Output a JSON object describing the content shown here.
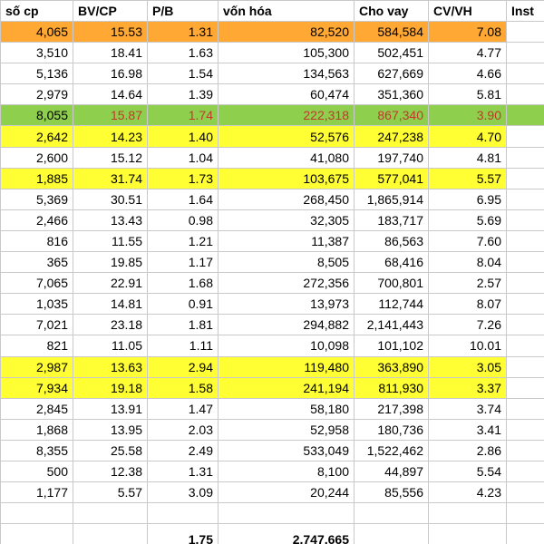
{
  "columns": [
    "số cp",
    "BV/CP",
    "P/B",
    "vốn hóa",
    "Cho vay",
    "CV/VH",
    "Inst"
  ],
  "rows": [
    {
      "hl": "orange",
      "cells": [
        "4,065",
        "15.53",
        "1.31",
        "82,520",
        "584,584",
        "7.08",
        ""
      ]
    },
    {
      "hl": "",
      "cells": [
        "3,510",
        "18.41",
        "1.63",
        "105,300",
        "502,451",
        "4.77",
        ""
      ]
    },
    {
      "hl": "",
      "cells": [
        "5,136",
        "16.98",
        "1.54",
        "134,563",
        "627,669",
        "4.66",
        ""
      ]
    },
    {
      "hl": "",
      "cells": [
        "2,979",
        "14.64",
        "1.39",
        "60,474",
        "351,360",
        "5.81",
        ""
      ]
    },
    {
      "hl": "green",
      "cells": [
        "8,055",
        "15.87",
        "1.74",
        "222,318",
        "867,340",
        "3.90",
        ""
      ]
    },
    {
      "hl": "yellow",
      "cells": [
        "2,642",
        "14.23",
        "1.40",
        "52,576",
        "247,238",
        "4.70",
        ""
      ]
    },
    {
      "hl": "",
      "cells": [
        "2,600",
        "15.12",
        "1.04",
        "41,080",
        "197,740",
        "4.81",
        ""
      ]
    },
    {
      "hl": "yellow",
      "cells": [
        "1,885",
        "31.74",
        "1.73",
        "103,675",
        "577,041",
        "5.57",
        ""
      ]
    },
    {
      "hl": "",
      "cells": [
        "5,369",
        "30.51",
        "1.64",
        "268,450",
        "1,865,914",
        "6.95",
        ""
      ]
    },
    {
      "hl": "",
      "cells": [
        "2,466",
        "13.43",
        "0.98",
        "32,305",
        "183,717",
        "5.69",
        ""
      ]
    },
    {
      "hl": "",
      "cells": [
        "816",
        "11.55",
        "1.21",
        "11,387",
        "86,563",
        "7.60",
        ""
      ]
    },
    {
      "hl": "",
      "cells": [
        "365",
        "19.85",
        "1.17",
        "8,505",
        "68,416",
        "8.04",
        ""
      ]
    },
    {
      "hl": "",
      "cells": [
        "7,065",
        "22.91",
        "1.68",
        "272,356",
        "700,801",
        "2.57",
        ""
      ]
    },
    {
      "hl": "",
      "cells": [
        "1,035",
        "14.81",
        "0.91",
        "13,973",
        "112,744",
        "8.07",
        ""
      ]
    },
    {
      "hl": "",
      "cells": [
        "7,021",
        "23.18",
        "1.81",
        "294,882",
        "2,141,443",
        "7.26",
        ""
      ]
    },
    {
      "hl": "",
      "cells": [
        "821",
        "11.05",
        "1.11",
        "10,098",
        "101,102",
        "10.01",
        ""
      ]
    },
    {
      "hl": "yellow",
      "cells": [
        "2,987",
        "13.63",
        "2.94",
        "119,480",
        "363,890",
        "3.05",
        ""
      ]
    },
    {
      "hl": "yellow",
      "cells": [
        "7,934",
        "19.18",
        "1.58",
        "241,194",
        "811,930",
        "3.37",
        ""
      ]
    },
    {
      "hl": "",
      "cells": [
        "2,845",
        "13.91",
        "1.47",
        "58,180",
        "217,398",
        "3.74",
        ""
      ]
    },
    {
      "hl": "",
      "cells": [
        "1,868",
        "13.95",
        "2.03",
        "52,958",
        "180,736",
        "3.41",
        ""
      ]
    },
    {
      "hl": "",
      "cells": [
        "8,355",
        "25.58",
        "2.49",
        "533,049",
        "1,522,462",
        "2.86",
        ""
      ]
    },
    {
      "hl": "",
      "cells": [
        "500",
        "12.38",
        "1.31",
        "8,100",
        "44,897",
        "5.54",
        ""
      ]
    },
    {
      "hl": "",
      "cells": [
        "1,177",
        "5.57",
        "3.09",
        "20,244",
        "85,556",
        "4.23",
        ""
      ]
    },
    {
      "hl": "",
      "cells": [
        "",
        "",
        "",
        "",
        "",
        "",
        ""
      ]
    }
  ],
  "total": [
    "",
    "",
    "1.75",
    "2,747,665",
    "",
    "",
    ""
  ],
  "colors": {
    "orange": "#ffa833",
    "yellow": "#ffff33",
    "green": "#8fcf4e",
    "green_text": "#c0392b"
  }
}
